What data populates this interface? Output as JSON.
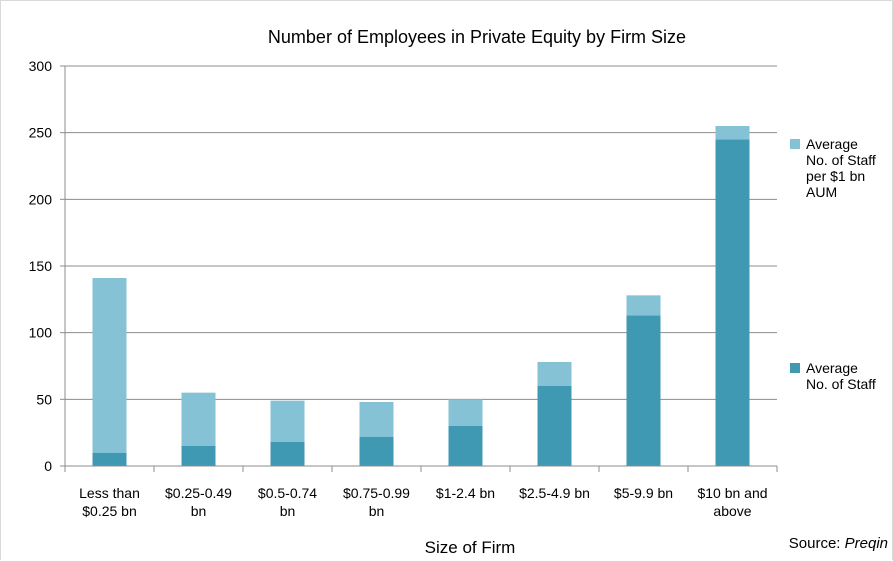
{
  "chart_data": {
    "type": "bar",
    "stacked": true,
    "title": "Number of Employees in Private Equity by Firm Size",
    "xlabel": "Size of Firm",
    "ylabel": "",
    "ylim": [
      0,
      300
    ],
    "yticks": [
      "0",
      "50",
      "100",
      "150",
      "200",
      "250",
      "300"
    ],
    "grid": true,
    "legend_position": "right",
    "categories": [
      [
        "Less than",
        "$0.25 bn"
      ],
      [
        "$0.25-0.49",
        "bn"
      ],
      [
        "$0.5-0.74",
        "bn"
      ],
      [
        "$0.75-0.99",
        "bn"
      ],
      [
        "$1-2.4 bn"
      ],
      [
        "$2.5-4.9 bn"
      ],
      [
        "$5-9.9 bn"
      ],
      [
        "$10 bn and",
        "above"
      ]
    ],
    "series": [
      {
        "name": "Average No. of Staff",
        "legend_lines": [
          "Average",
          "No. of Staff"
        ],
        "color": "#4099b3",
        "values": [
          10,
          15,
          18,
          22,
          30,
          60,
          113,
          245
        ]
      },
      {
        "name": "Average No. of Staff per $1 bn AUM",
        "legend_lines": [
          "Average",
          "No. of Staff",
          "per $1 bn",
          "AUM"
        ],
        "color": "#86c2d6",
        "values": [
          131,
          40,
          31,
          26,
          20,
          18,
          15,
          10
        ]
      }
    ]
  },
  "source": {
    "label": "Source:",
    "name": "Preqin"
  }
}
